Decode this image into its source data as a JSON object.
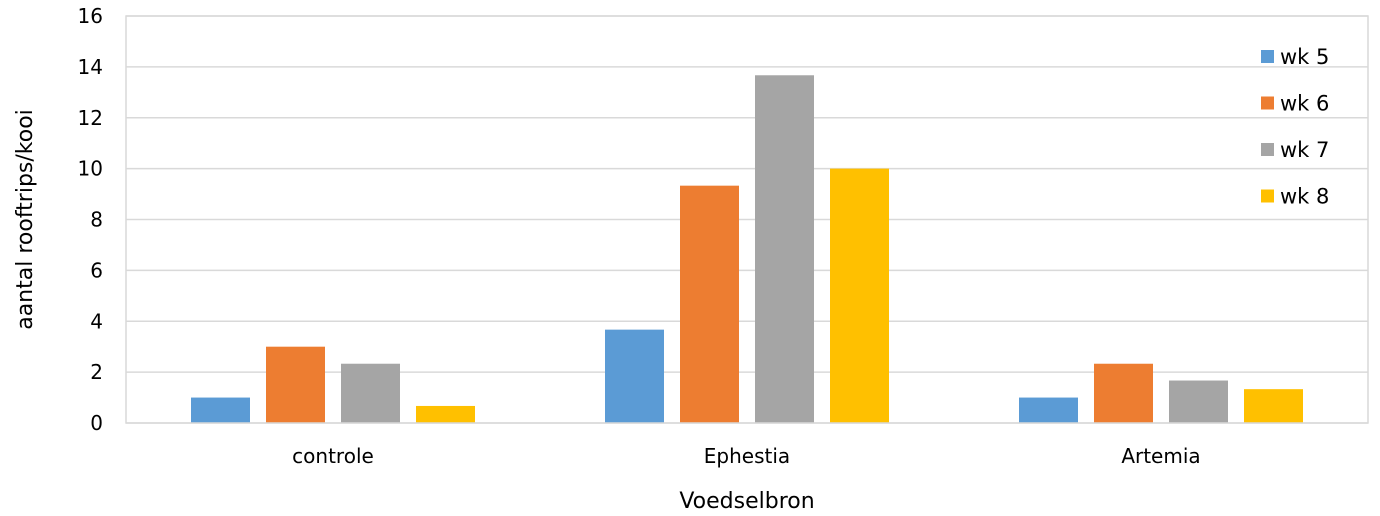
{
  "chart_data": {
    "type": "bar",
    "title": "",
    "xlabel": "Voedselbron",
    "ylabel": "aantal rooftrips/kooi",
    "categories": [
      "controle",
      "Ephestia",
      "Artemia"
    ],
    "series": [
      {
        "name": "wk 5",
        "color": "#5b9bd5",
        "values": [
          1.0,
          3.67,
          1.0
        ]
      },
      {
        "name": "wk 6",
        "color": "#ed7d31",
        "values": [
          3.0,
          9.33,
          2.33
        ]
      },
      {
        "name": "wk 7",
        "color": "#a5a5a5",
        "values": [
          2.33,
          13.67,
          1.67
        ]
      },
      {
        "name": "wk 8",
        "color": "#ffc000",
        "values": [
          0.67,
          10.0,
          1.33
        ]
      }
    ],
    "ylim": [
      0,
      16
    ],
    "yticks": [
      "0",
      "2",
      "4",
      "6",
      "8",
      "10",
      "12",
      "14",
      "16"
    ],
    "grid": true,
    "legend_position": "right"
  }
}
